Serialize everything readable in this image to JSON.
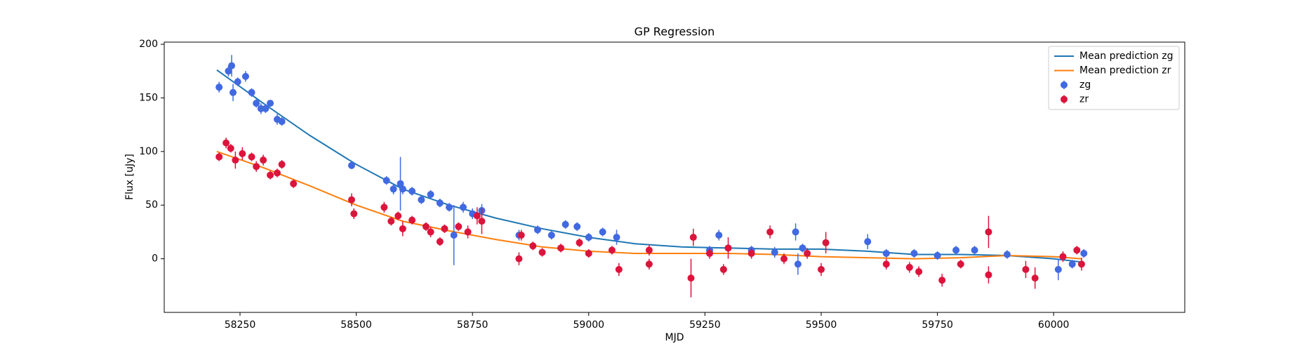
{
  "chart_data": {
    "type": "scatter",
    "title": "GP Regression",
    "x_label": "MJD",
    "y_label": "Flux [uJy]",
    "xlim": [
      58087,
      60282
    ],
    "ylim": [
      -50,
      202
    ],
    "xticks": [
      58250,
      58500,
      58750,
      59000,
      59250,
      59500,
      59750,
      60000
    ],
    "yticks": [
      0,
      50,
      100,
      150,
      200
    ],
    "legend": "upper right",
    "series": [
      {
        "name": "Mean prediction zg",
        "type": "line",
        "color": "#1f77b4",
        "x": [
          58200,
          58300,
          58400,
          58500,
          58600,
          58700,
          58800,
          58900,
          59000,
          59100,
          59200,
          59300,
          59400,
          59500,
          59600,
          59700,
          59800,
          59900,
          60000,
          60060
        ],
        "values": [
          176,
          145,
          115,
          88,
          65,
          50,
          38,
          28,
          20,
          14,
          11,
          10,
          9,
          9,
          7,
          4,
          4,
          3,
          0,
          -3
        ]
      },
      {
        "name": "Mean prediction zr",
        "type": "line",
        "color": "#ff7f0e",
        "x": [
          58200,
          58300,
          58400,
          58500,
          58600,
          58700,
          58800,
          58900,
          59000,
          59100,
          59200,
          59300,
          59400,
          59500,
          59600,
          59700,
          59800,
          59900,
          60000,
          60060
        ],
        "values": [
          100,
          85,
          68,
          50,
          35,
          26,
          18,
          11,
          7,
          5,
          5,
          5,
          4,
          2,
          1,
          0,
          1,
          3,
          2,
          0
        ]
      },
      {
        "name": "zg",
        "type": "errorbar",
        "color": "#4169e1",
        "x": [
          58205,
          58225,
          58232,
          58235,
          58245,
          58262,
          58275,
          58285,
          58295,
          58305,
          58315,
          58330,
          58340,
          58490,
          58565,
          58580,
          58595,
          58600,
          58620,
          58640,
          58660,
          58680,
          58700,
          58710,
          58730,
          58750,
          58770,
          58850,
          58890,
          58920,
          58950,
          58975,
          59000,
          59030,
          59060,
          59260,
          59280,
          59300,
          59350,
          59400,
          59445,
          59450,
          59460,
          59600,
          59640,
          59700,
          59750,
          59790,
          59830,
          59900,
          60010,
          60040,
          60065
        ],
        "values": [
          160,
          175,
          180,
          155,
          165,
          170,
          155,
          145,
          140,
          140,
          145,
          130,
          128,
          87,
          73,
          65,
          70,
          65,
          63,
          55,
          60,
          52,
          48,
          22,
          48,
          42,
          45,
          22,
          27,
          22,
          32,
          30,
          20,
          25,
          20,
          8,
          22,
          10,
          8,
          6,
          25,
          -5,
          10,
          16,
          5,
          5,
          3,
          8,
          8,
          4,
          -10,
          -5,
          5
        ],
        "errors": [
          5,
          5,
          10,
          8,
          4,
          5,
          4,
          4,
          5,
          4,
          3,
          5,
          4,
          3,
          4,
          5,
          25,
          5,
          4,
          4,
          4,
          4,
          4,
          28,
          5,
          5,
          6,
          5,
          4,
          4,
          4,
          4,
          4,
          4,
          7,
          4,
          5,
          4,
          4,
          5,
          8,
          10,
          4,
          7,
          4,
          4,
          4,
          4,
          4,
          4,
          10,
          4,
          4
        ]
      },
      {
        "name": "zr",
        "type": "errorbar",
        "color": "#dc143c",
        "x": [
          58205,
          58220,
          58230,
          58240,
          58255,
          58275,
          58285,
          58300,
          58315,
          58330,
          58340,
          58365,
          58490,
          58495,
          58560,
          58575,
          58590,
          58600,
          58620,
          58650,
          58660,
          58680,
          58690,
          58720,
          58740,
          58760,
          58770,
          58850,
          58855,
          58880,
          58900,
          58940,
          58980,
          59000,
          59050,
          59065,
          59130,
          59130,
          59220,
          59225,
          59260,
          59290,
          59300,
          59350,
          59390,
          59420,
          59470,
          59500,
          59510,
          59640,
          59690,
          59710,
          59760,
          59800,
          59860,
          59860,
          59940,
          59960,
          60020,
          60050,
          60060
        ],
        "values": [
          95,
          108,
          103,
          92,
          98,
          95,
          86,
          92,
          78,
          80,
          88,
          70,
          55,
          42,
          48,
          35,
          40,
          28,
          36,
          30,
          25,
          16,
          28,
          30,
          25,
          40,
          35,
          0,
          22,
          12,
          6,
          10,
          15,
          5,
          8,
          -10,
          -5,
          8,
          -18,
          20,
          5,
          -10,
          10,
          5,
          25,
          0,
          5,
          -10,
          15,
          -5,
          -8,
          -12,
          -20,
          -5,
          25,
          -15,
          -10,
          -18,
          2,
          8,
          -5
        ],
        "errors": [
          4,
          5,
          4,
          8,
          6,
          4,
          5,
          5,
          4,
          4,
          4,
          4,
          6,
          5,
          5,
          4,
          4,
          7,
          4,
          4,
          5,
          4,
          4,
          4,
          6,
          8,
          12,
          6,
          5,
          4,
          4,
          4,
          4,
          4,
          4,
          6,
          5,
          5,
          18,
          8,
          5,
          5,
          10,
          5,
          6,
          5,
          5,
          6,
          10,
          5,
          5,
          5,
          6,
          4,
          15,
          8,
          8,
          10,
          5,
          4,
          6
        ]
      }
    ]
  }
}
